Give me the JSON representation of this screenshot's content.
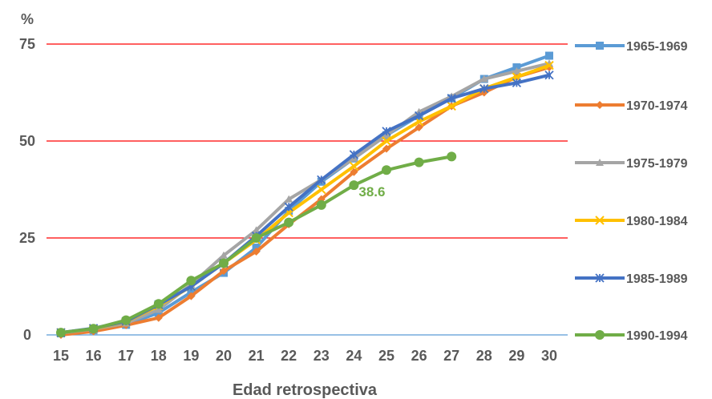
{
  "chart_data": {
    "type": "line",
    "title": "",
    "ylabel": "%",
    "xlabel": "Edad retrospectiva",
    "ylim": [
      0,
      75
    ],
    "yticks": [
      0,
      25,
      50,
      75
    ],
    "grid": true,
    "legend_position": "right",
    "x": [
      15,
      16,
      17,
      18,
      19,
      20,
      21,
      22,
      23,
      24,
      25,
      26,
      27,
      28,
      29,
      30
    ],
    "series": [
      {
        "name": "1965-1969",
        "color": "#5B9BD5",
        "marker": "square",
        "values": [
          0.4,
          1.2,
          2.6,
          5.7,
          11.0,
          16.0,
          22.5,
          32.0,
          39.5,
          45.5,
          51.5,
          56.5,
          61.0,
          66.0,
          69.0,
          72.0
        ]
      },
      {
        "name": "1970-1974",
        "color": "#ED7D31",
        "marker": "diamond",
        "values": [
          0.0,
          0.9,
          2.5,
          4.4,
          10.0,
          16.5,
          21.5,
          28.5,
          35.0,
          42.0,
          48.0,
          53.5,
          59.0,
          62.5,
          66.5,
          69.0
        ]
      },
      {
        "name": "1975-1979",
        "color": "#A5A5A5",
        "marker": "triangle",
        "values": [
          0.5,
          1.5,
          3.0,
          6.5,
          13.0,
          20.5,
          27.0,
          35.0,
          40.0,
          45.5,
          51.5,
          57.5,
          61.5,
          66.0,
          68.0,
          70.0
        ]
      },
      {
        "name": "1980-1984",
        "color": "#FFC000",
        "marker": "x",
        "values": [
          0.6,
          1.6,
          3.4,
          7.5,
          12.5,
          18.5,
          24.5,
          31.5,
          37.5,
          43.5,
          50.0,
          55.0,
          59.0,
          63.5,
          66.5,
          69.5
        ]
      },
      {
        "name": "1985-1989",
        "color": "#4472C4",
        "marker": "star",
        "values": [
          0.6,
          1.7,
          3.5,
          7.8,
          12.5,
          18.5,
          25.5,
          33.0,
          40.0,
          46.5,
          52.5,
          56.5,
          61.0,
          63.5,
          65.0,
          67.0
        ]
      },
      {
        "name": "1990-1994",
        "color": "#70AD47",
        "marker": "circle",
        "values": [
          0.6,
          1.6,
          3.8,
          8.0,
          14.0,
          18.5,
          25.0,
          29.0,
          33.5,
          38.6,
          42.5,
          44.5,
          46.0,
          null,
          null,
          null
        ]
      }
    ],
    "annotations": [
      {
        "text": "38.6",
        "x": 24,
        "y": 38.6,
        "series": "1990-1994",
        "color": "#70AD47"
      }
    ]
  }
}
